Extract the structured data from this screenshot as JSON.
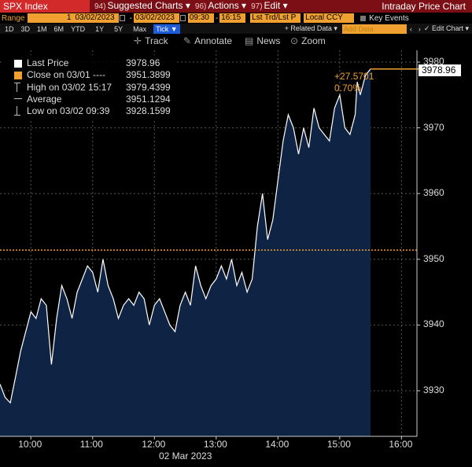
{
  "titlebar": {
    "ticker": "SPX Index",
    "suggested": {
      "num": "94)",
      "label": "Suggested Charts",
      "arrow": "▾"
    },
    "actions": {
      "num": "96)",
      "label": "Actions",
      "arrow": "▾"
    },
    "edit": {
      "num": "97)",
      "label": "Edit",
      "arrow": "▾"
    },
    "title": "Intraday Price Chart"
  },
  "rangebar": {
    "range_label": "Range",
    "range_value": "1",
    "date_from": "03/02/2023",
    "date_to": "03/02/2023",
    "time_from": "09:30",
    "time_to": "16:15",
    "series_select": "Lst Trd/Lst P",
    "currency": "Local CCY",
    "key_events": "Key Events"
  },
  "periodbar": {
    "periods": [
      "1D",
      "3D",
      "1M",
      "6M",
      "YTD",
      "1Y",
      "5Y",
      "Max"
    ],
    "tick": "Tick ▼",
    "related": "+ Related Data ▾",
    "add_data": "Add Data",
    "edit_chart": "✓ Edit Chart ▾"
  },
  "toolbar": {
    "track": "Track",
    "annotate": "Annotate",
    "news": "News",
    "zoom": "Zoom"
  },
  "legend": {
    "last_price": {
      "name": "Last Price",
      "value": "3978.96"
    },
    "close": {
      "name": "Close on 03/01 ----",
      "value": "3951.3899"
    },
    "high": {
      "name": "High on 03/02 15:17",
      "value": "3979.4399"
    },
    "average": {
      "name": "Average",
      "value": "3951.1294"
    },
    "low": {
      "name": "Low on 03/02 09:39",
      "value": "3928.1599"
    }
  },
  "annotations": {
    "last_tag": "3978.96",
    "change": "+27.5701",
    "change_pct": "0.70%"
  },
  "colors": {
    "title_bg": "#7b0f15",
    "ticker_bg": "#d22a2a",
    "accent_orange": "#f0a030",
    "area_fill": "#0f2444",
    "line": "#ffffff"
  },
  "chart_data": {
    "type": "area",
    "x_label_date": "02 Mar 2023",
    "x_ticks": [
      "10:00",
      "11:00",
      "12:00",
      "13:00",
      "14:00",
      "15:00",
      "16:00"
    ],
    "y_ticks": [
      3930,
      3940,
      3950,
      3960,
      3970,
      3980
    ],
    "ylim": [
      3922.5,
      3982.5
    ],
    "xlim": [
      "09:30",
      "16:15"
    ],
    "prev_close": 3951.3899,
    "grid": true,
    "series": [
      {
        "name": "Last Price",
        "x": [
          "09:30",
          "09:35",
          "09:40",
          "09:45",
          "09:50",
          "09:55",
          "10:00",
          "10:05",
          "10:10",
          "10:15",
          "10:20",
          "10:25",
          "10:30",
          "10:35",
          "10:40",
          "10:45",
          "10:50",
          "10:55",
          "11:00",
          "11:05",
          "11:10",
          "11:15",
          "11:20",
          "11:25",
          "11:30",
          "11:35",
          "11:40",
          "11:45",
          "11:50",
          "11:55",
          "12:00",
          "12:05",
          "12:10",
          "12:15",
          "12:20",
          "12:25",
          "12:30",
          "12:35",
          "12:40",
          "12:45",
          "12:50",
          "12:55",
          "13:00",
          "13:05",
          "13:10",
          "13:15",
          "13:20",
          "13:25",
          "13:30",
          "13:35",
          "13:40",
          "13:45",
          "13:50",
          "13:55",
          "14:00",
          "14:05",
          "14:10",
          "14:15",
          "14:20",
          "14:25",
          "14:30",
          "14:35",
          "14:40",
          "14:45",
          "14:50",
          "14:55",
          "15:00",
          "15:05",
          "15:10",
          "15:15",
          "15:17",
          "15:20",
          "15:25",
          "15:30"
        ],
        "values": [
          3931,
          3929,
          3928.16,
          3932,
          3936,
          3939,
          3942,
          3941,
          3944,
          3943,
          3934,
          3941,
          3946,
          3944,
          3941,
          3945,
          3947,
          3949,
          3948,
          3945,
          3950,
          3946,
          3944,
          3941,
          3943,
          3944,
          3943,
          3945,
          3944,
          3940,
          3943,
          3944,
          3942,
          3940,
          3939,
          3943,
          3945,
          3943,
          3949,
          3946,
          3944,
          3946,
          3947,
          3949,
          3947,
          3950,
          3946,
          3948,
          3945,
          3947,
          3955,
          3960,
          3953,
          3956,
          3962,
          3968,
          3972,
          3970,
          3966,
          3970,
          3967,
          3973,
          3970,
          3969,
          3968,
          3973,
          3975,
          3970,
          3969,
          3972,
          3977,
          3975,
          3978,
          3978.96
        ]
      }
    ]
  }
}
